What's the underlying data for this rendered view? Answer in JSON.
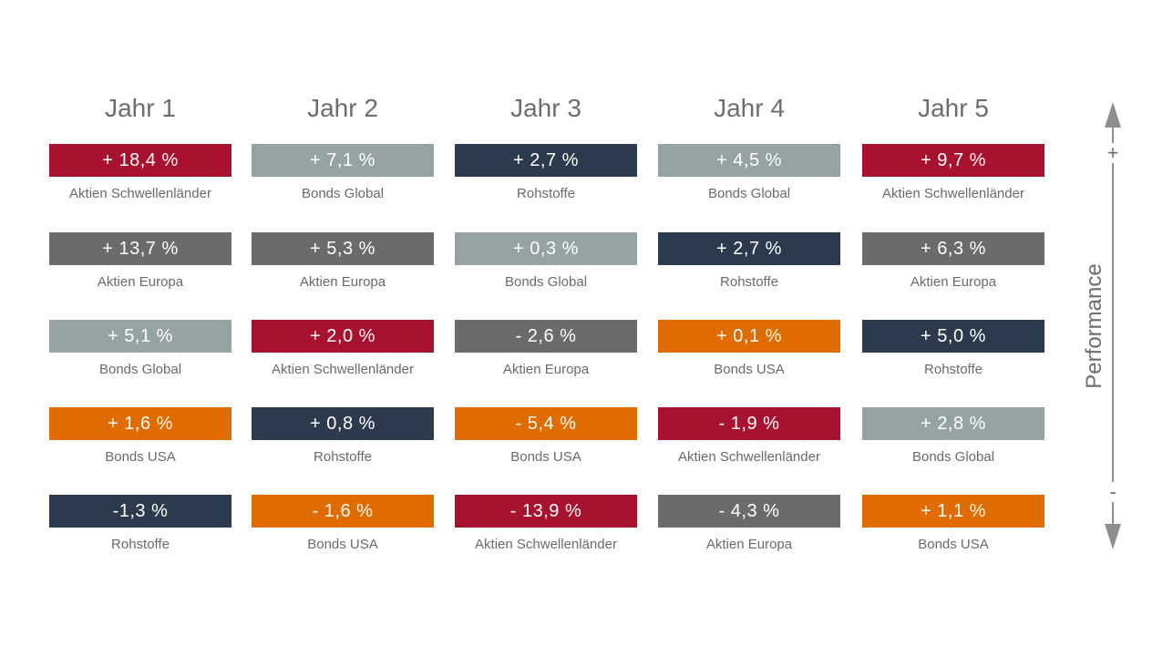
{
  "colors": {
    "Aktien Schwellenländer": "#a8122e",
    "Aktien Europa": "#6b6b6b",
    "Bonds Global": "#96a3a3",
    "Bonds USA": "#e06c00",
    "Rohstoffe": "#2c3a4d"
  },
  "axis": {
    "title": "Performance",
    "plus": "+",
    "minus": "-"
  },
  "chart_data": {
    "type": "table",
    "title": "",
    "columns": [
      {
        "year": "Jahr 1",
        "entries": [
          {
            "display": "+ 18,4 %",
            "value": 18.4,
            "asset": "Aktien Schwellenländer"
          },
          {
            "display": "+ 13,7 %",
            "value": 13.7,
            "asset": "Aktien Europa"
          },
          {
            "display": "+ 5,1 %",
            "value": 5.1,
            "asset": "Bonds Global"
          },
          {
            "display": "+ 1,6 %",
            "value": 1.6,
            "asset": "Bonds USA"
          },
          {
            "display": "-1,3 %",
            "value": -1.3,
            "asset": "Rohstoffe"
          }
        ]
      },
      {
        "year": "Jahr 2",
        "entries": [
          {
            "display": "+ 7,1 %",
            "value": 7.1,
            "asset": "Bonds Global"
          },
          {
            "display": "+ 5,3 %",
            "value": 5.3,
            "asset": "Aktien Europa"
          },
          {
            "display": "+ 2,0 %",
            "value": 2.0,
            "asset": "Aktien Schwellenländer"
          },
          {
            "display": "+ 0,8 %",
            "value": 0.8,
            "asset": "Rohstoffe"
          },
          {
            "display": "- 1,6 %",
            "value": -1.6,
            "asset": "Bonds USA"
          }
        ]
      },
      {
        "year": "Jahr 3",
        "entries": [
          {
            "display": "+ 2,7 %",
            "value": 2.7,
            "asset": "Rohstoffe"
          },
          {
            "display": "+ 0,3 %",
            "value": 0.3,
            "asset": "Bonds Global"
          },
          {
            "display": "- 2,6 %",
            "value": -2.6,
            "asset": "Aktien Europa"
          },
          {
            "display": "- 5,4 %",
            "value": -5.4,
            "asset": "Bonds USA"
          },
          {
            "display": "- 13,9 %",
            "value": -13.9,
            "asset": "Aktien Schwellenländer"
          }
        ]
      },
      {
        "year": "Jahr 4",
        "entries": [
          {
            "display": "+ 4,5 %",
            "value": 4.5,
            "asset": "Bonds Global"
          },
          {
            "display": "+ 2,7 %",
            "value": 2.7,
            "asset": "Rohstoffe"
          },
          {
            "display": "+ 0,1 %",
            "value": 0.1,
            "asset": "Bonds USA"
          },
          {
            "display": "- 1,9 %",
            "value": -1.9,
            "asset": "Aktien Schwellenländer"
          },
          {
            "display": "- 4,3 %",
            "value": -4.3,
            "asset": "Aktien Europa"
          }
        ]
      },
      {
        "year": "Jahr 5",
        "entries": [
          {
            "display": "+ 9,7 %",
            "value": 9.7,
            "asset": "Aktien Schwellenländer"
          },
          {
            "display": "+ 6,3 %",
            "value": 6.3,
            "asset": "Aktien Europa"
          },
          {
            "display": "+ 5,0 %",
            "value": 5.0,
            "asset": "Rohstoffe"
          },
          {
            "display": "+ 2,8 %",
            "value": 2.8,
            "asset": "Bonds Global"
          },
          {
            "display": "+ 1,1 %",
            "value": 1.1,
            "asset": "Bonds USA"
          }
        ]
      }
    ]
  }
}
